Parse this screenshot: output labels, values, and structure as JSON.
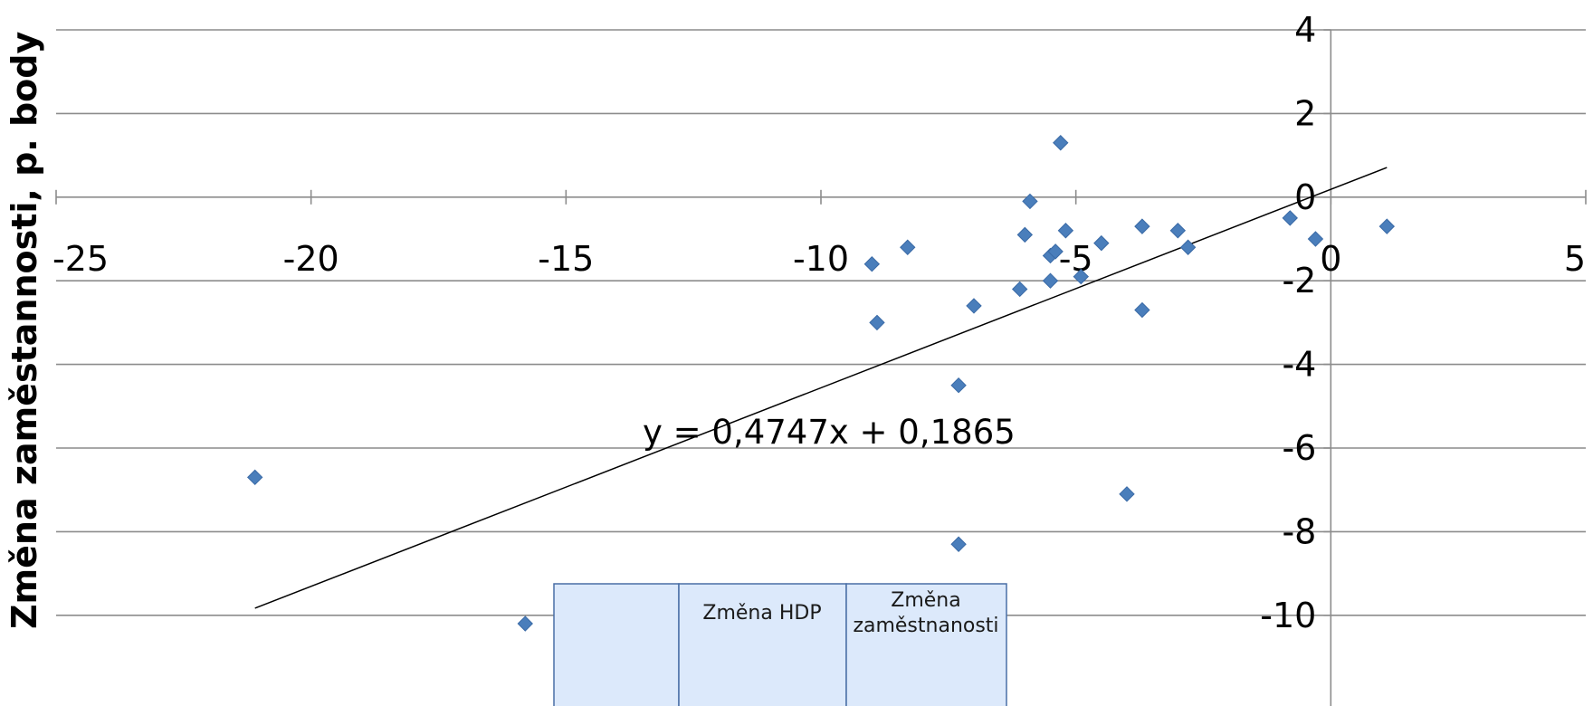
{
  "chart_data": {
    "type": "scatter",
    "title": "",
    "xlabel": "",
    "ylabel": "Změna zaměstannosti, p. body",
    "xlim": [
      -25,
      5
    ],
    "ylim": [
      -11,
      4
    ],
    "x_ticks": [
      "-25",
      "-20",
      "-15",
      "-10",
      "-5",
      "0",
      "5"
    ],
    "y_ticks": [
      "4",
      "2",
      "0",
      "-2",
      "-4",
      "-6",
      "-8",
      "-10"
    ],
    "grid": "horizontal",
    "marker_color": "#4a7ebb",
    "series": [
      {
        "points": [
          {
            "x": -21.1,
            "y": -6.7
          },
          {
            "x": -15.8,
            "y": -10.2
          },
          {
            "x": -9.0,
            "y": -1.6
          },
          {
            "x": -8.9,
            "y": -3.0
          },
          {
            "x": -8.3,
            "y": -1.2
          },
          {
            "x": -7.3,
            "y": -4.5
          },
          {
            "x": -7.3,
            "y": -8.3
          },
          {
            "x": -7.0,
            "y": -2.6
          },
          {
            "x": -6.1,
            "y": -2.2
          },
          {
            "x": -6.0,
            "y": -0.9
          },
          {
            "x": -5.9,
            "y": -0.1
          },
          {
            "x": -5.5,
            "y": -1.4
          },
          {
            "x": -5.5,
            "y": -2.0
          },
          {
            "x": -5.4,
            "y": -1.3
          },
          {
            "x": -5.3,
            "y": 1.3
          },
          {
            "x": -5.2,
            "y": -0.8
          },
          {
            "x": -4.9,
            "y": -1.9
          },
          {
            "x": -4.5,
            "y": -1.1
          },
          {
            "x": -4.0,
            "y": -7.1
          },
          {
            "x": -3.7,
            "y": -0.7
          },
          {
            "x": -3.7,
            "y": -2.7
          },
          {
            "x": -3.0,
            "y": -0.8
          },
          {
            "x": -2.8,
            "y": -1.2
          },
          {
            "x": -0.8,
            "y": -0.5
          },
          {
            "x": -0.3,
            "y": -1.0
          },
          {
            "x": 1.1,
            "y": -0.7
          }
        ]
      }
    ],
    "trendline": {
      "equation": "y = 0,4747x + 0,1865",
      "slope": 0.4747,
      "intercept": 0.1865,
      "x_range": [
        -21.1,
        1.1
      ]
    },
    "table_header": [
      "",
      "Změna HDP",
      "Změna zaměstnanosti"
    ]
  }
}
